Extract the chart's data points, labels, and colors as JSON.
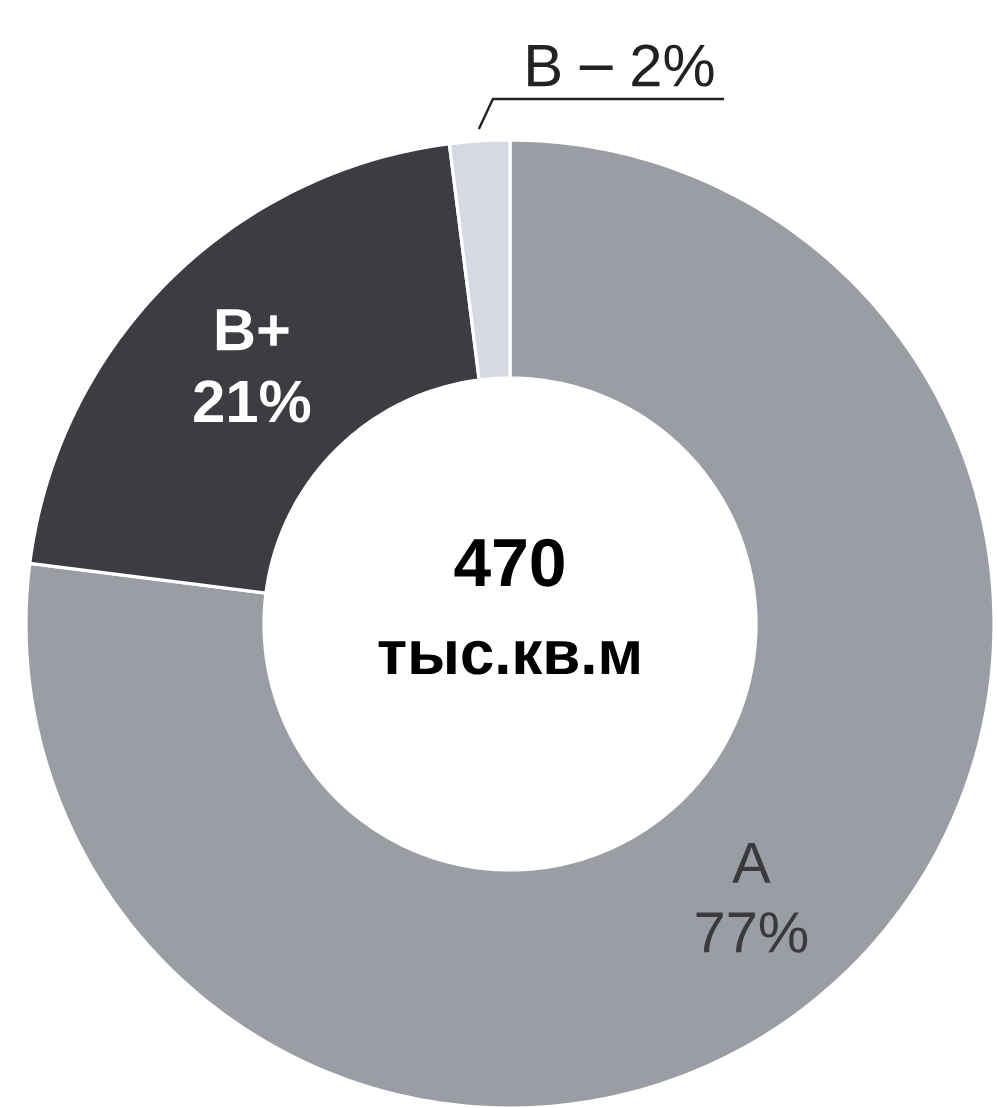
{
  "chart_data": {
    "type": "donut",
    "categories": [
      "A",
      "B+",
      "B"
    ],
    "values": [
      77,
      21,
      2
    ],
    "colors": [
      "#9a9ea4",
      "#3c3d42",
      "#d5dae2"
    ],
    "value_labels": [
      "77%",
      "21%",
      "2%"
    ],
    "annotations": [
      "470",
      "тыс.кв.м"
    ]
  }
}
